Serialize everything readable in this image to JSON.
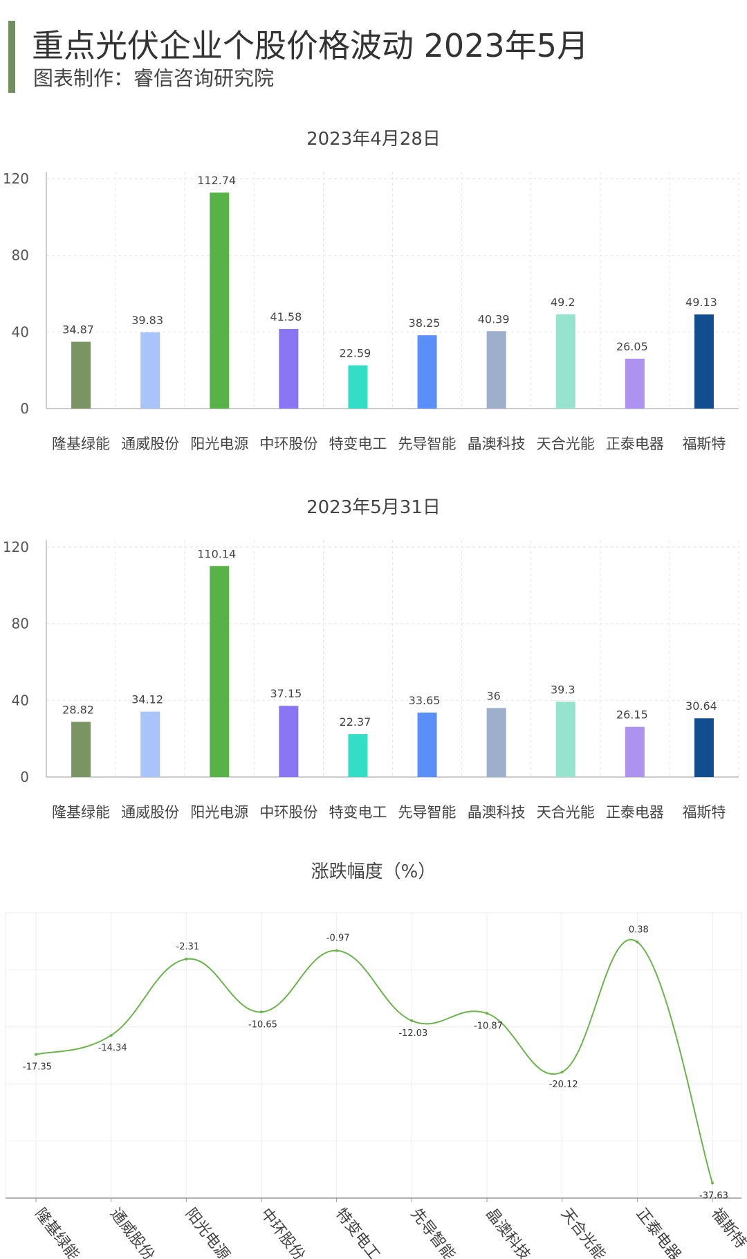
{
  "header": {
    "title": "重点光伏企业个股价格波动 2023年5月",
    "subtitle": "图表制作：睿信咨询研究院",
    "accent_color": "#6f8f5d"
  },
  "chart_data": [
    {
      "type": "bar",
      "title": "2023年4月28日",
      "categories": [
        "隆基绿能",
        "通威股份",
        "阳光电源",
        "中环股份",
        "特变电工",
        "先导智能",
        "晶澳科技",
        "天合光能",
        "正泰电器",
        "福斯特"
      ],
      "values": [
        34.87,
        39.83,
        112.74,
        41.58,
        22.59,
        38.25,
        40.39,
        49.2,
        26.05,
        49.13
      ],
      "value_labels": [
        "34.87",
        "39.83",
        "112.74",
        "41.58",
        "22.59",
        "38.25",
        "40.39",
        "49.2",
        "26.05",
        "49.13"
      ],
      "colors": [
        "#7a9464",
        "#a9c4fb",
        "#58b247",
        "#8a76f5",
        "#34ddc6",
        "#5a8ff7",
        "#9eafcc",
        "#97e3cd",
        "#ae92ef",
        "#124d8f"
      ],
      "ylim": [
        0,
        120
      ],
      "yticks": [
        "0",
        "40",
        "80",
        "120"
      ],
      "grid": true
    },
    {
      "type": "bar",
      "title": "2023年5月31日",
      "categories": [
        "隆基绿能",
        "通威股份",
        "阳光电源",
        "中环股份",
        "特变电工",
        "先导智能",
        "晶澳科技",
        "天合光能",
        "正泰电器",
        "福斯特"
      ],
      "values": [
        28.82,
        34.12,
        110.14,
        37.15,
        22.37,
        33.65,
        36,
        39.3,
        26.15,
        30.64
      ],
      "value_labels": [
        "28.82",
        "34.12",
        "110.14",
        "37.15",
        "22.37",
        "33.65",
        "36",
        "39.3",
        "26.15",
        "30.64"
      ],
      "colors": [
        "#7a9464",
        "#a9c4fb",
        "#58b247",
        "#8a76f5",
        "#34ddc6",
        "#5a8ff7",
        "#9eafcc",
        "#97e3cd",
        "#ae92ef",
        "#124d8f"
      ],
      "ylim": [
        0,
        120
      ],
      "yticks": [
        "0",
        "40",
        "80",
        "120"
      ],
      "grid": true
    },
    {
      "type": "line",
      "title": "涨跌幅度（%）",
      "categories": [
        "隆基绿能",
        "通威股份",
        "阳光电源",
        "中环股份",
        "特变电工",
        "先导智能",
        "晶澳科技",
        "天合光能",
        "正泰电器",
        "福斯特"
      ],
      "values": [
        -17.35,
        -14.34,
        -2.31,
        -10.65,
        -0.97,
        -12.03,
        -10.87,
        -20.12,
        0.38,
        -37.63
      ],
      "value_labels": [
        "-17.35",
        "-14.34",
        "-2.31",
        "-10.65",
        "-0.97",
        "-12.03",
        "-10.87",
        "-20.12",
        "0.38",
        "-37.63"
      ],
      "line_color": "#6cb34f",
      "ylim": [
        -40,
        5
      ],
      "grid": true,
      "smooth": true
    }
  ]
}
